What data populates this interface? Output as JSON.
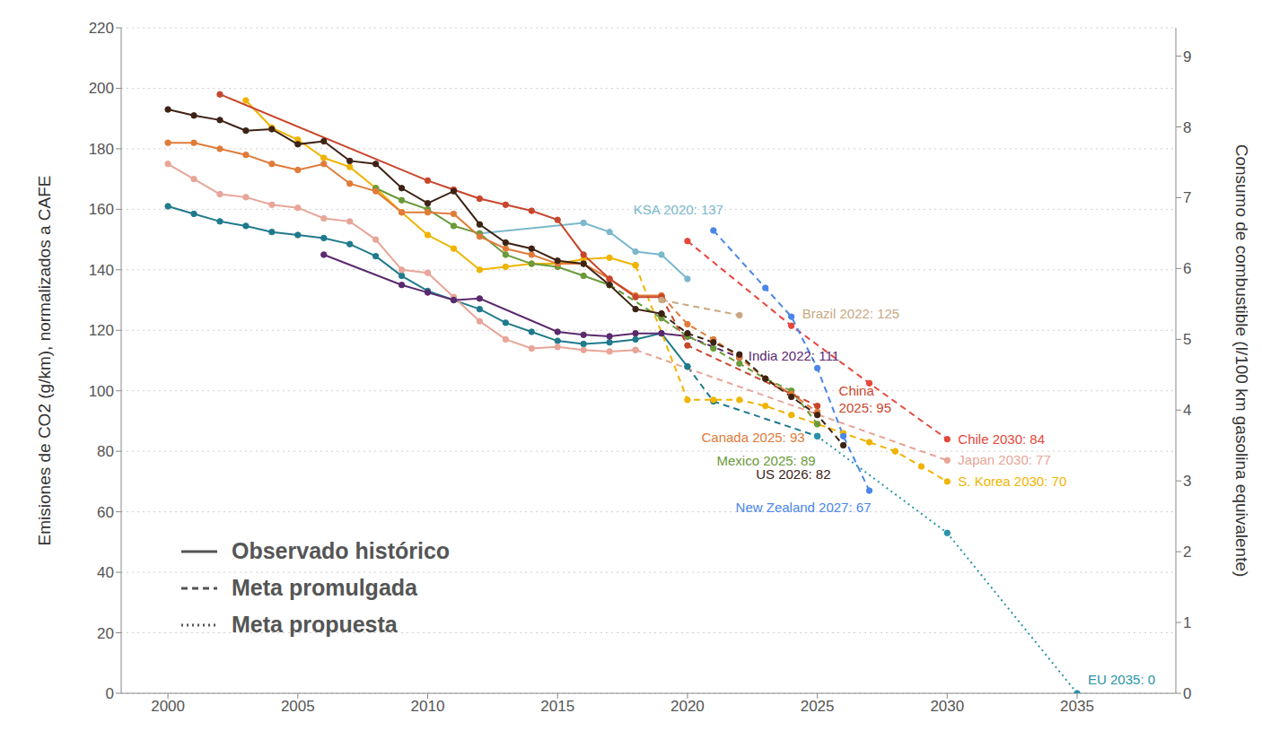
{
  "chart_data": {
    "type": "line",
    "y_label": "Emisiones de CO2 (g/km), normalizados a CAFE",
    "y2_label": "Consumo de combustible (l/100 km gasolina equivalente)",
    "x": [
      2000,
      2001,
      2002,
      2003,
      2004,
      2005,
      2006,
      2007,
      2008,
      2009,
      2010,
      2011,
      2012,
      2013,
      2014,
      2015,
      2016,
      2017,
      2018,
      2019,
      2020,
      2021,
      2022,
      2023,
      2024,
      2025,
      2026,
      2027,
      2028,
      2029,
      2030,
      2031,
      2032,
      2033,
      2034,
      2035
    ],
    "xlim": [
      1998.2,
      2038.8
    ],
    "xticks": [
      2000,
      2005,
      2010,
      2015,
      2020,
      2025,
      2030,
      2035
    ],
    "ylim": [
      0,
      220
    ],
    "yticks": [
      0,
      20,
      40,
      60,
      80,
      100,
      120,
      140,
      160,
      180,
      200,
      220
    ],
    "y2lim": [
      0,
      9.4
    ],
    "y2ticks": [
      0,
      1,
      2,
      3,
      4,
      5,
      6,
      7,
      8,
      9
    ],
    "grid": true,
    "marker": "circle",
    "legend": "lower left",
    "legend_items": [
      {
        "label": "Observado histórico",
        "line_style": "solid"
      },
      {
        "label": "Meta promulgada",
        "line_style": "dashed"
      },
      {
        "label": "Meta propuesta",
        "line_style": "dotted"
      }
    ],
    "series": [
      {
        "color": "#1f7a8c",
        "line_style": "solid",
        "values": [
          161,
          158.5,
          156,
          154.5,
          152.5,
          151.5,
          150.5,
          148.5,
          144.5,
          138,
          133,
          130,
          127,
          122.5,
          119.5,
          116.5,
          115.5,
          116,
          117,
          119,
          108,
          null,
          null,
          null,
          null,
          null,
          null,
          null,
          null,
          null,
          null,
          null,
          null,
          null,
          null,
          null
        ]
      },
      {
        "color": "#1f7a8c",
        "line_style": "dashed",
        "values": [
          null,
          null,
          null,
          null,
          null,
          null,
          null,
          null,
          null,
          null,
          null,
          null,
          null,
          null,
          null,
          null,
          null,
          null,
          null,
          null,
          108,
          96.5,
          null,
          null,
          null,
          85,
          null,
          null,
          null,
          null,
          null,
          null,
          null,
          null,
          null,
          null
        ]
      },
      {
        "name": "EU 2035: 0",
        "color": "#2a93a8",
        "line_style": "dotted",
        "values": [
          null,
          null,
          null,
          null,
          null,
          null,
          null,
          null,
          null,
          null,
          null,
          null,
          null,
          null,
          null,
          null,
          null,
          null,
          null,
          null,
          null,
          null,
          null,
          null,
          null,
          85,
          null,
          null,
          null,
          null,
          53,
          null,
          null,
          null,
          null,
          0
        ]
      },
      {
        "color": "#e8a598",
        "line_style": "solid",
        "values": [
          175,
          170,
          165,
          164,
          161.5,
          160.5,
          157,
          156,
          150,
          140,
          139,
          131,
          123,
          117,
          114,
          114.5,
          113.5,
          113,
          113.5,
          null,
          null,
          null,
          null,
          null,
          null,
          null,
          null,
          null,
          null,
          null,
          null,
          null,
          null,
          null,
          null,
          null
        ]
      },
      {
        "name": "Japan 2030: 77",
        "color": "#e8a598",
        "line_style": "dashed",
        "values": [
          null,
          null,
          null,
          null,
          null,
          null,
          null,
          null,
          null,
          null,
          null,
          null,
          null,
          null,
          null,
          null,
          null,
          null,
          113.5,
          null,
          null,
          null,
          null,
          null,
          null,
          null,
          null,
          null,
          null,
          null,
          77,
          null,
          null,
          null,
          null,
          null
        ]
      },
      {
        "color": "#5b2a6e",
        "line_style": "solid",
        "values": [
          null,
          null,
          null,
          null,
          null,
          null,
          145,
          null,
          null,
          135,
          132.5,
          130,
          130.5,
          null,
          null,
          119.5,
          118.5,
          118,
          119,
          119,
          118,
          null,
          null,
          null,
          null,
          null,
          null,
          null,
          null,
          null,
          null,
          null,
          null,
          null,
          null,
          null
        ]
      },
      {
        "name": "India 2022: 111",
        "color": "#5b2a6e",
        "line_style": "dashed",
        "values": [
          null,
          null,
          null,
          null,
          null,
          null,
          null,
          null,
          null,
          null,
          null,
          null,
          null,
          null,
          null,
          null,
          null,
          null,
          null,
          null,
          118,
          null,
          111,
          null,
          null,
          null,
          null,
          null,
          null,
          null,
          null,
          null,
          null,
          null,
          null,
          null
        ]
      },
      {
        "name": "KSA 2020: 137",
        "color": "#7ab8cc",
        "line_style": "solid",
        "values": [
          null,
          null,
          null,
          null,
          null,
          null,
          null,
          null,
          null,
          null,
          null,
          null,
          152,
          null,
          null,
          null,
          155.5,
          152.5,
          146,
          145,
          137,
          null,
          null,
          null,
          null,
          null,
          null,
          null,
          null,
          null,
          null,
          null,
          null,
          null,
          null,
          null
        ]
      },
      {
        "color": "#f0b400",
        "line_style": "solid",
        "values": [
          null,
          null,
          null,
          196,
          187,
          183,
          177,
          174,
          167,
          159,
          151.5,
          147,
          140,
          141,
          142,
          142,
          143.5,
          144,
          141.5,
          null,
          null,
          null,
          null,
          null,
          null,
          null,
          null,
          null,
          null,
          null,
          null,
          null,
          null,
          null,
          null,
          null
        ]
      },
      {
        "name": "S. Korea 2030: 70",
        "color": "#f0b400",
        "line_style": "dashed",
        "values": [
          null,
          null,
          null,
          null,
          null,
          null,
          null,
          null,
          null,
          null,
          null,
          null,
          null,
          null,
          null,
          null,
          null,
          null,
          141.5,
          null,
          97,
          97,
          97,
          95,
          92,
          89,
          86,
          83,
          80,
          75,
          70,
          null,
          null,
          null,
          null,
          null
        ]
      },
      {
        "color": "#6a9a3a",
        "line_style": "solid",
        "values": [
          null,
          null,
          null,
          null,
          null,
          null,
          null,
          null,
          167,
          163,
          160,
          154.5,
          152,
          145,
          142,
          141,
          138,
          135,
          null,
          null,
          null,
          null,
          null,
          null,
          null,
          null,
          null,
          null,
          null,
          null,
          null,
          null,
          null,
          null,
          null,
          null
        ]
      },
      {
        "name": "Mexico 2025: 89",
        "color": "#6a9a3a",
        "line_style": "dashed",
        "values": [
          null,
          null,
          null,
          null,
          null,
          null,
          null,
          null,
          null,
          null,
          null,
          null,
          null,
          null,
          null,
          null,
          null,
          135,
          null,
          124,
          118,
          114,
          109,
          104,
          100,
          89,
          null,
          null,
          null,
          null,
          null,
          null,
          null,
          null,
          null,
          null
        ]
      },
      {
        "color": "#e07b39",
        "line_style": "solid",
        "values": [
          182,
          182,
          180,
          178,
          175,
          173,
          175,
          168.5,
          166,
          159,
          159,
          158.5,
          151,
          147,
          145,
          142,
          142,
          137,
          131.5,
          131.5,
          null,
          null,
          null,
          null,
          null,
          null,
          null,
          null,
          null,
          null,
          null,
          null,
          null,
          null,
          null,
          null
        ]
      },
      {
        "name": "Canada 2025: 93",
        "color": "#e07b39",
        "line_style": "dashed",
        "values": [
          null,
          null,
          null,
          null,
          null,
          null,
          null,
          null,
          null,
          null,
          null,
          null,
          null,
          null,
          null,
          null,
          null,
          null,
          null,
          131.5,
          122,
          117,
          111,
          104,
          99,
          93,
          null,
          null,
          null,
          null,
          null,
          null,
          null,
          null,
          null,
          null
        ]
      },
      {
        "color": "#c8462c",
        "line_style": "solid",
        "values": [
          null,
          null,
          198,
          null,
          null,
          null,
          null,
          null,
          null,
          null,
          169.5,
          166.5,
          163.5,
          161.5,
          159.5,
          156.5,
          145,
          137,
          131,
          131,
          null,
          null,
          null,
          null,
          null,
          null,
          null,
          null,
          null,
          null,
          null,
          null,
          null,
          null,
          null,
          null
        ]
      },
      {
        "name": "China 2025: 95",
        "color": "#c8462c",
        "line_style": "dashed",
        "values": [
          null,
          null,
          null,
          null,
          null,
          null,
          null,
          null,
          null,
          null,
          null,
          null,
          null,
          null,
          null,
          null,
          null,
          null,
          null,
          131,
          115,
          null,
          null,
          null,
          null,
          95,
          null,
          null,
          null,
          null,
          null,
          null,
          null,
          null,
          null,
          null
        ]
      },
      {
        "color": "#3d2314",
        "line_style": "solid",
        "values": [
          193,
          191,
          189.5,
          186,
          186.5,
          181.5,
          182.5,
          176,
          175,
          167,
          162,
          166,
          155,
          149,
          147,
          143,
          142,
          135,
          127,
          125.5,
          null,
          null,
          null,
          null,
          null,
          null,
          null,
          null,
          null,
          null,
          null,
          null,
          null,
          null,
          null,
          null
        ]
      },
      {
        "name": "US 2026: 82",
        "color": "#3d2314",
        "line_style": "dashed",
        "values": [
          null,
          null,
          null,
          null,
          null,
          null,
          null,
          null,
          null,
          null,
          null,
          null,
          null,
          null,
          null,
          null,
          null,
          null,
          null,
          125.5,
          119,
          116,
          112,
          104,
          98,
          92,
          82,
          null,
          null,
          null,
          null,
          null,
          null,
          null,
          null,
          null
        ]
      },
      {
        "name": "Brazil 2022: 125",
        "color": "#c8a882",
        "line_style": "dashed",
        "values": [
          null,
          null,
          null,
          null,
          null,
          null,
          null,
          null,
          null,
          null,
          null,
          null,
          null,
          null,
          null,
          null,
          null,
          null,
          null,
          130,
          null,
          null,
          125,
          null,
          null,
          null,
          null,
          null,
          null,
          null,
          null,
          null,
          null,
          null,
          null,
          null
        ]
      },
      {
        "name": "Chile 2030: 84",
        "color": "#e5473b",
        "line_style": "dashed",
        "values": [
          null,
          null,
          null,
          null,
          null,
          null,
          null,
          null,
          null,
          null,
          null,
          null,
          null,
          null,
          null,
          null,
          null,
          null,
          null,
          null,
          149.5,
          null,
          null,
          null,
          121.5,
          null,
          null,
          102.5,
          null,
          null,
          84,
          null,
          null,
          null,
          null,
          null
        ]
      },
      {
        "name": "New Zealand 2027: 67",
        "color": "#4a86e8",
        "line_style": "dashed",
        "values": [
          null,
          null,
          null,
          null,
          null,
          null,
          null,
          null,
          null,
          null,
          null,
          null,
          null,
          null,
          null,
          null,
          null,
          null,
          null,
          null,
          null,
          153,
          null,
          134,
          124.5,
          107.5,
          85,
          67,
          null,
          null,
          null,
          null,
          null,
          null,
          null,
          null
        ]
      }
    ]
  }
}
